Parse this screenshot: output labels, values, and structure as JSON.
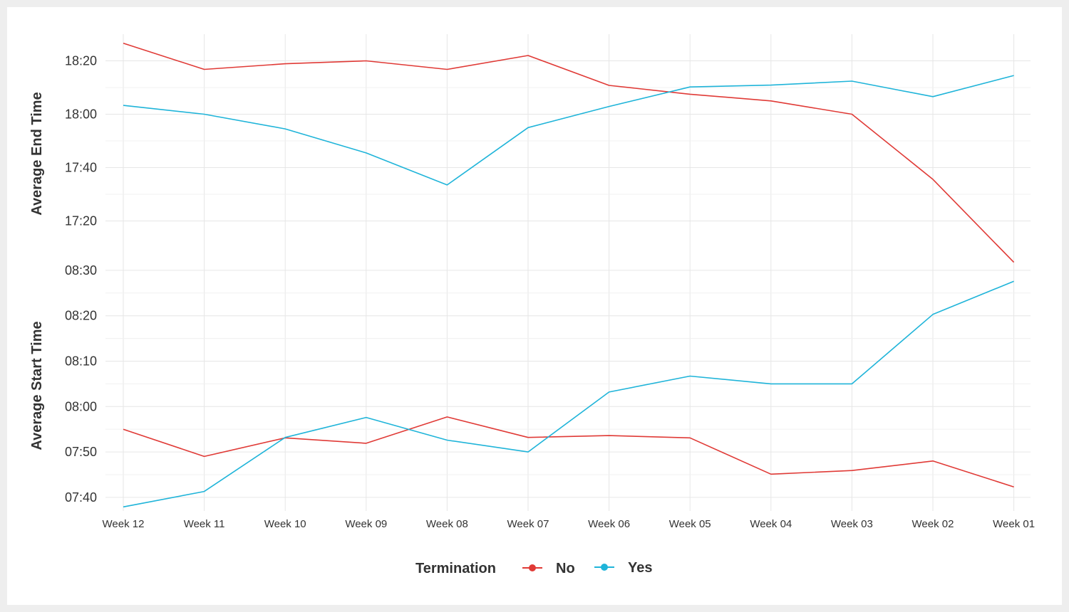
{
  "chart_data": {
    "type": "line",
    "x": [
      "Week 12",
      "Week 11",
      "Week 10",
      "Week 09",
      "Week 08",
      "Week 07",
      "Week 06",
      "Week 05",
      "Week 04",
      "Week 03",
      "Week 02",
      "Week 01"
    ],
    "panels": [
      {
        "id": "end",
        "ylabel": "Average End Time",
        "yticks": [
          "17:20",
          "17:40",
          "18:00",
          "18:20"
        ],
        "tick_values": [
          1040,
          1060,
          1080,
          1100
        ],
        "ylim": [
          1030,
          1110
        ],
        "y_unit": "minutes since midnight",
        "series": [
          {
            "name": "No",
            "values": [
              1106.6,
              1096.8,
              1098.9,
              1100.0,
              1096.8,
              1102.0,
              1090.8,
              1087.5,
              1085.0,
              1080.0,
              1055.6,
              1024.5
            ]
          },
          {
            "name": "Yes",
            "values": [
              1083.3,
              1080.0,
              1074.5,
              1065.5,
              1053.5,
              1075.0,
              1082.9,
              1090.2,
              1090.9,
              1092.4,
              1086.6,
              1094.5
            ]
          }
        ]
      },
      {
        "id": "start",
        "ylabel": "Average Start Time",
        "yticks": [
          "07:40",
          "07:50",
          "08:00",
          "08:10",
          "08:20",
          "08:30"
        ],
        "tick_values": [
          460,
          470,
          480,
          490,
          500,
          510
        ],
        "ylim": [
          457,
          515
        ],
        "y_unit": "minutes since midnight",
        "series": [
          {
            "name": "No",
            "values": [
              475.0,
              469.0,
              473.1,
              471.9,
              477.7,
              473.2,
              473.6,
              473.1,
              465.1,
              465.9,
              468.0,
              462.3
            ]
          },
          {
            "name": "Yes",
            "values": [
              457.9,
              461.3,
              473.2,
              477.6,
              472.6,
              470.0,
              483.2,
              486.7,
              485.0,
              485.0,
              500.3,
              507.6
            ]
          }
        ]
      }
    ],
    "legend": {
      "title": "Termination",
      "placement": "bottom",
      "entries": [
        {
          "label": "No",
          "color": "#e03a36"
        },
        {
          "label": "Yes",
          "color": "#1fb4d9"
        }
      ]
    },
    "grid": true
  }
}
